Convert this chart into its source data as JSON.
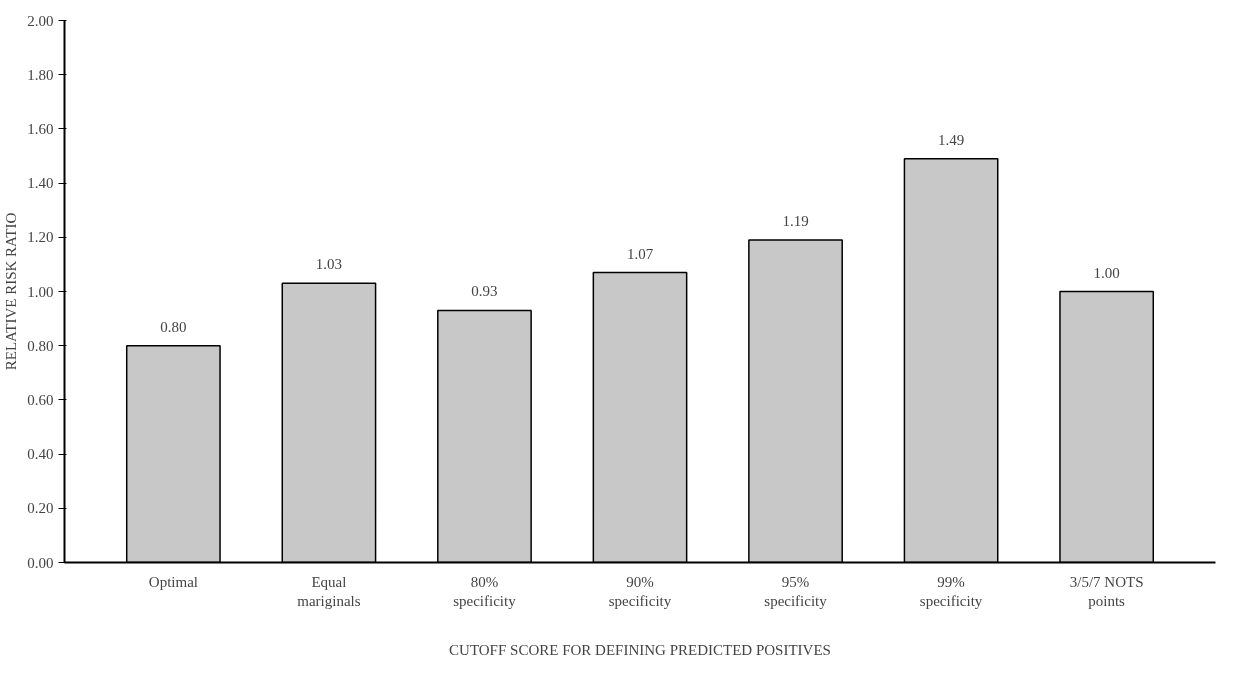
{
  "chart_data": {
    "type": "bar",
    "xlabel": "CUTOFF SCORE FOR DEFINING PREDICTED POSITIVES",
    "ylabel": "RELATIVE RISK RATIO",
    "categories": [
      "Optimal",
      "Equal\nmariginals",
      "80%\nspecificity",
      "90%\nspecificity",
      "95%\nspecificity",
      "99%\nspecificity",
      "3/5/7 NOTS\npoints"
    ],
    "values": [
      0.8,
      1.03,
      0.93,
      1.07,
      1.19,
      1.49,
      1.0
    ],
    "value_labels": [
      "0.80",
      "1.03",
      "0.93",
      "1.07",
      "1.19",
      "1.49",
      "1.00"
    ],
    "color": "#c8c8c8",
    "ylim": [
      0,
      2
    ],
    "yticks": [
      {
        "value": 0,
        "label": "0.00"
      },
      {
        "value": 0.2,
        "label": "0.20"
      },
      {
        "value": 0.4,
        "label": "0.40"
      },
      {
        "value": 0.6,
        "label": "0.60"
      },
      {
        "value": 0.8,
        "label": "0.80"
      },
      {
        "value": 1,
        "label": "1.00"
      },
      {
        "value": 1.2,
        "label": "1.20"
      },
      {
        "value": 1.4,
        "label": "1.40"
      },
      {
        "value": 1.6,
        "label": "1.60"
      },
      {
        "value": 1.8,
        "label": "1.80"
      },
      {
        "value": 2,
        "label": "2.00"
      }
    ],
    "grid": false
  }
}
